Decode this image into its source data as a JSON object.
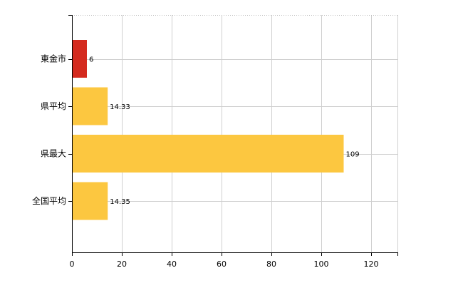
{
  "chart_data": {
    "type": "bar",
    "orientation": "horizontal",
    "categories": [
      "東金市",
      "県平均",
      "県最大",
      "全国平均"
    ],
    "values": [
      6,
      14.33,
      109,
      14.35
    ],
    "value_labels": [
      "6",
      "14.33",
      "109",
      "14.35"
    ],
    "bar_colors": [
      "#d42a1e",
      "#fcc740",
      "#fcc740",
      "#fcc740"
    ],
    "xlim": [
      0,
      130
    ],
    "xticks": [
      0,
      20,
      40,
      60,
      80,
      100,
      120
    ],
    "grid": true,
    "legend": "none",
    "title": "",
    "xlabel": "",
    "ylabel": ""
  }
}
